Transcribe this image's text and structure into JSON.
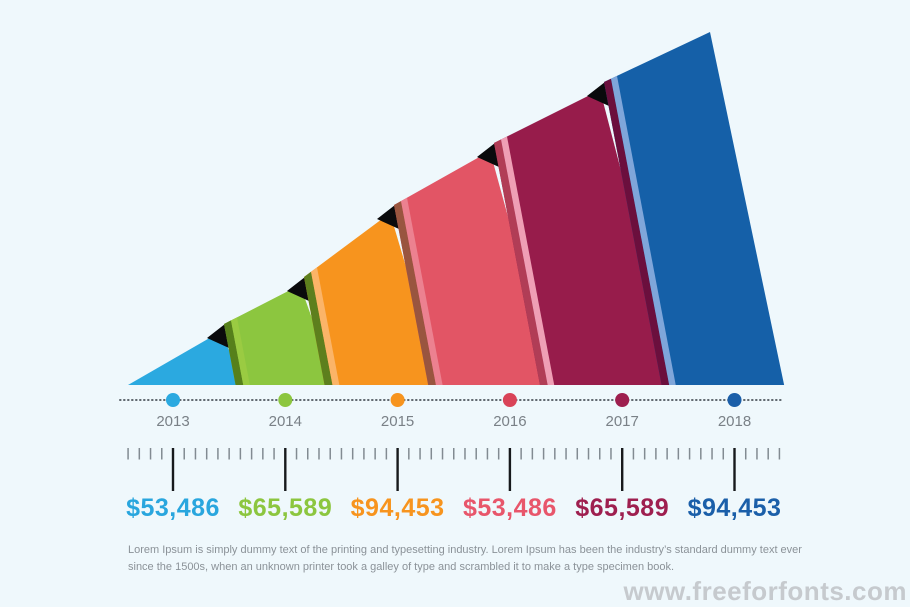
{
  "chart_data": {
    "type": "bar",
    "subtype": "3d-ascending-wedge-timeline",
    "title": "",
    "legend": "none",
    "grid": false,
    "categories": [
      "2013",
      "2014",
      "2015",
      "2016",
      "2017",
      "2018"
    ],
    "values": [
      53486,
      65589,
      94453,
      53486,
      65589,
      94453
    ],
    "value_labels": [
      "$53,486",
      "$65,589",
      "$94,453",
      "$53,486",
      "$65,589",
      "$94,453"
    ],
    "colors": {
      "faces": [
        "#2BA9E0",
        "#8CC63F",
        "#F7941E",
        "#E25565",
        "#971C4B",
        "#1560A8"
      ],
      "edge_dark": [
        null,
        "#56801B",
        "#5D7F1D",
        "#99553F",
        "#B13D56",
        "#6B0F3D"
      ],
      "edge_light": [
        null,
        "#9ACB42",
        "#FBB468",
        "#EC8190",
        "#EF9FB5",
        "#7FA6DA"
      ],
      "dots": [
        "#2BA9E0",
        "#8CC63F",
        "#F7941E",
        "#D94358",
        "#9E1F4F",
        "#1B5FA9"
      ],
      "labels": [
        "#29A6DE",
        "#8CC63F",
        "#F7941E",
        "#E8566B",
        "#9E1F4F",
        "#1B5FA9"
      ],
      "notch": "#0A0A0C",
      "dotted_line": "#5E666D",
      "tick_small": "#828B92",
      "tick_tall": "#17191C",
      "background": "#EFF8FC"
    }
  },
  "description": {
    "line1": "Lorem Ipsum is simply dummy text of the printing and typesetting industry. Lorem Ipsum has been the industry’s standard dummy text ever",
    "line2": "since the 1500s, when an unknown printer took a galley of type and scrambled it to make a type specimen book."
  },
  "watermark": "www.freeforfonts.com"
}
